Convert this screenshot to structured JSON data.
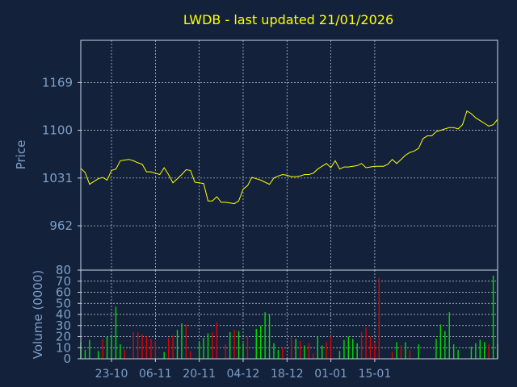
{
  "title": "LWDB - last updated 21/01/2026",
  "colors": {
    "background": "#13223a",
    "text": "#7e9fc9",
    "title": "#ffff00",
    "grid": "#c8d4e6",
    "frame": "#c8d4e6",
    "price_line": "#ffff00",
    "volume_up": "#00dd00",
    "volume_down": "#dd0000"
  },
  "chart_data": [
    {
      "type": "line",
      "name": "price",
      "ylabel": "Price",
      "ylim": [
        898,
        1230
      ],
      "yticks": [
        962,
        1031,
        1100,
        1169
      ],
      "xticks": [
        {
          "label": "23-10",
          "index": 7
        },
        {
          "label": "06-11",
          "index": 17
        },
        {
          "label": "20-11",
          "index": 27
        },
        {
          "label": "04-12",
          "index": 37
        },
        {
          "label": "18-12",
          "index": 47
        },
        {
          "label": "01-01",
          "index": 57
        },
        {
          "label": "15-01",
          "index": 67
        }
      ],
      "grid": true,
      "values": [
        1045,
        1039,
        1022,
        1026,
        1030,
        1032,
        1028,
        1042,
        1044,
        1056,
        1057,
        1058,
        1056,
        1053,
        1051,
        1040,
        1040,
        1038,
        1036,
        1046,
        1036,
        1024,
        1030,
        1036,
        1043,
        1042,
        1025,
        1024,
        1023,
        998,
        998,
        1004,
        996,
        996,
        995,
        994,
        998,
        1015,
        1020,
        1032,
        1030,
        1028,
        1025,
        1022,
        1031,
        1034,
        1036,
        1035,
        1033,
        1033,
        1034,
        1036,
        1036,
        1038,
        1044,
        1048,
        1052,
        1046,
        1056,
        1044,
        1047,
        1047,
        1048,
        1049,
        1052,
        1046,
        1047,
        1048,
        1048,
        1048,
        1051,
        1058,
        1052,
        1058,
        1064,
        1068,
        1070,
        1074,
        1088,
        1092,
        1092,
        1098,
        1100,
        1102,
        1104,
        1104,
        1102,
        1108,
        1128,
        1124,
        1118,
        1114,
        1110,
        1106,
        1108,
        1116
      ]
    },
    {
      "type": "bar",
      "name": "volume",
      "ylabel": "Volume (0000)",
      "ylim": [
        0,
        80
      ],
      "yticks": [
        0,
        10,
        20,
        30,
        40,
        50,
        60,
        70,
        80
      ],
      "grid": true,
      "values": [
        15,
        8,
        17,
        0,
        7,
        18,
        20,
        22,
        47,
        13,
        8,
        0,
        24,
        24,
        22,
        20,
        18,
        16,
        0,
        6,
        19,
        21,
        26,
        32,
        31,
        7,
        0,
        15,
        19,
        23,
        24,
        33,
        0,
        13,
        24,
        26,
        25,
        14,
        20,
        0,
        27,
        30,
        42,
        40,
        14,
        8,
        10,
        0,
        19,
        18,
        16,
        12,
        14,
        5,
        20,
        12,
        15,
        21,
        0,
        7,
        17,
        20,
        18,
        14,
        24,
        28,
        20,
        14,
        73,
        0,
        0,
        6,
        15,
        12,
        15,
        8,
        0,
        13,
        0,
        0,
        0,
        18,
        31,
        25,
        42,
        13,
        8,
        0,
        0,
        11,
        14,
        17,
        15,
        13,
        75,
        13
      ],
      "up": [
        true,
        true,
        true,
        false,
        true,
        false,
        true,
        true,
        true,
        true,
        false,
        false,
        false,
        false,
        false,
        false,
        false,
        false,
        false,
        true,
        false,
        false,
        true,
        true,
        false,
        false,
        false,
        true,
        true,
        true,
        false,
        false,
        false,
        false,
        true,
        false,
        true,
        true,
        false,
        false,
        true,
        true,
        true,
        true,
        true,
        true,
        false,
        false,
        false,
        true,
        false,
        true,
        false,
        false,
        true,
        true,
        false,
        false,
        true,
        true,
        true,
        true,
        true,
        true,
        false,
        false,
        false,
        false,
        false,
        false,
        false,
        false,
        true,
        false,
        true,
        false,
        false,
        true,
        false,
        false,
        false,
        true,
        true,
        true,
        true,
        true,
        true,
        false,
        false,
        true,
        true,
        true,
        true,
        false,
        true,
        true
      ]
    }
  ]
}
